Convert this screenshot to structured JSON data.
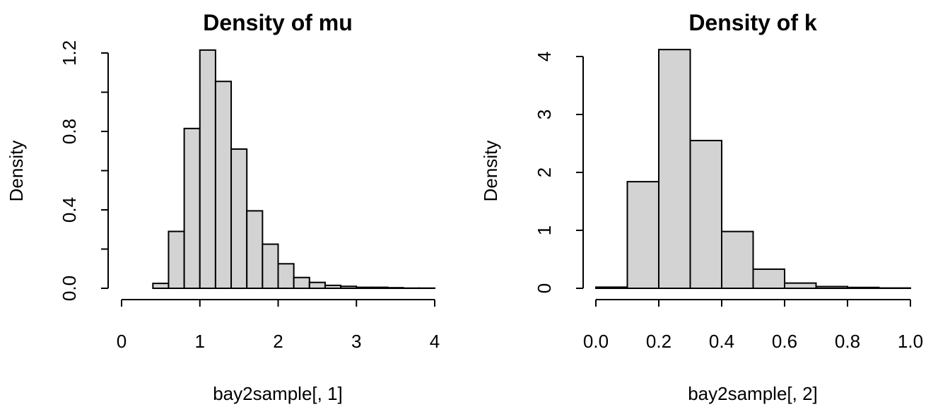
{
  "chart_data": [
    {
      "type": "bar",
      "title": "Density of mu",
      "xlabel": "bay2sample[, 1]",
      "ylabel": "Density",
      "bin_width": 0.2,
      "bin_starts": [
        0.4,
        0.6,
        0.8,
        1.0,
        1.2,
        1.4,
        1.6,
        1.8,
        2.0,
        2.2,
        2.4,
        2.6,
        2.8,
        3.0,
        3.2,
        3.4,
        3.6,
        3.8
      ],
      "values": [
        0.025,
        0.29,
        0.815,
        1.215,
        1.055,
        0.71,
        0.395,
        0.225,
        0.125,
        0.055,
        0.03,
        0.015,
        0.01,
        0.005,
        0.005,
        0.003,
        0.001,
        0.001
      ],
      "xlim": [
        0,
        4
      ],
      "ylim": [
        0,
        1.2
      ],
      "x_ticks": [
        0,
        1,
        2,
        3,
        4
      ],
      "x_tick_labels": [
        "0",
        "1",
        "2",
        "3",
        "4"
      ],
      "y_ticks": [
        0,
        0.4,
        0.8,
        1.2
      ],
      "y_tick_labels": [
        "0.0",
        "0.4",
        "0.8",
        "1.2"
      ],
      "bar_fill": "#d3d3d3",
      "bar_stroke": "#000000"
    },
    {
      "type": "bar",
      "title": "Density of k",
      "xlabel": "bay2sample[, 2]",
      "ylabel": "Density",
      "bin_width": 0.1,
      "bin_starts": [
        0.0,
        0.1,
        0.2,
        0.3,
        0.4,
        0.5,
        0.6,
        0.7,
        0.8,
        0.9
      ],
      "values": [
        0.02,
        1.84,
        4.12,
        2.55,
        0.98,
        0.33,
        0.09,
        0.03,
        0.015,
        0.005
      ],
      "xlim": [
        0,
        1
      ],
      "ylim": [
        0,
        4
      ],
      "x_ticks": [
        0,
        0.2,
        0.4,
        0.6,
        0.8,
        1.0
      ],
      "x_tick_labels": [
        "0.0",
        "0.2",
        "0.4",
        "0.6",
        "0.8",
        "1.0"
      ],
      "y_ticks": [
        0,
        1,
        2,
        3,
        4
      ],
      "y_tick_labels": [
        "0",
        "1",
        "2",
        "3",
        "4"
      ],
      "bar_fill": "#d3d3d3",
      "bar_stroke": "#000000"
    }
  ]
}
